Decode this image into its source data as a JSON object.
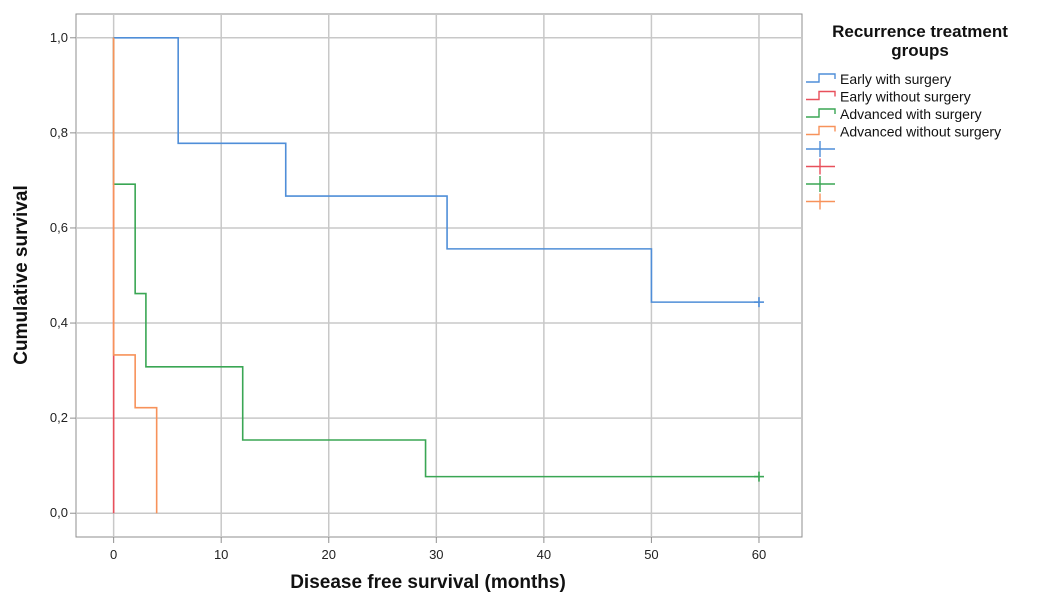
{
  "chart_data": {
    "type": "line",
    "subtype": "step (Kaplan-Meier survival)",
    "xlabel": "Disease free survival (months)",
    "ylabel": "Cumulative survival",
    "xlim": [
      -3.5,
      64
    ],
    "ylim": [
      -0.05,
      1.05
    ],
    "x_ticks": [
      0,
      10,
      20,
      30,
      40,
      50,
      60
    ],
    "x_tick_labels": [
      "0",
      "10",
      "20",
      "30",
      "40",
      "50",
      "60"
    ],
    "y_ticks": [
      0,
      0.2,
      0.4,
      0.6,
      0.8,
      1.0
    ],
    "y_tick_labels": [
      "0,0",
      "0,2",
      "0,4",
      "0,6",
      "0,8",
      "1,0"
    ],
    "grid": true,
    "legend": {
      "title": "Recurrence treatment groups",
      "title_lines": [
        "Recurrence treatment",
        "groups"
      ],
      "placement": "right-top",
      "entries": [
        "Early with surgery",
        "Early without surgery",
        "Advanced with surgery",
        "Advanced without surgery"
      ],
      "censored_markers": [
        "",
        "",
        "",
        ""
      ]
    },
    "colors": {
      "Early with surgery": "#4f8ed8",
      "Early without surgery": "#e8505b",
      "Advanced with surgery": "#3aa654",
      "Advanced without surgery": "#f7925a",
      "grid": "#c8c8c8",
      "axis": "#8f8f8f"
    },
    "series": [
      {
        "name": "Early with surgery",
        "x": [
          0,
          6,
          16,
          31,
          50,
          60
        ],
        "y": [
          1.0,
          0.778,
          0.667,
          0.556,
          0.444,
          0.444
        ],
        "censored": [
          [
            60,
            0.444
          ]
        ]
      },
      {
        "name": "Early without surgery",
        "x": [
          0,
          0
        ],
        "y": [
          1.0,
          0.0
        ],
        "censored": []
      },
      {
        "name": "Advanced with surgery",
        "x": [
          0,
          0,
          2,
          3,
          12,
          29,
          60
        ],
        "y": [
          1.0,
          0.692,
          0.462,
          0.308,
          0.154,
          0.077,
          0.077
        ],
        "censored": [
          [
            60,
            0.077
          ]
        ]
      },
      {
        "name": "Advanced without surgery",
        "x": [
          0,
          0,
          2,
          4,
          4
        ],
        "y": [
          1.0,
          0.333,
          0.222,
          0.222,
          0.0
        ],
        "censored": []
      }
    ]
  }
}
